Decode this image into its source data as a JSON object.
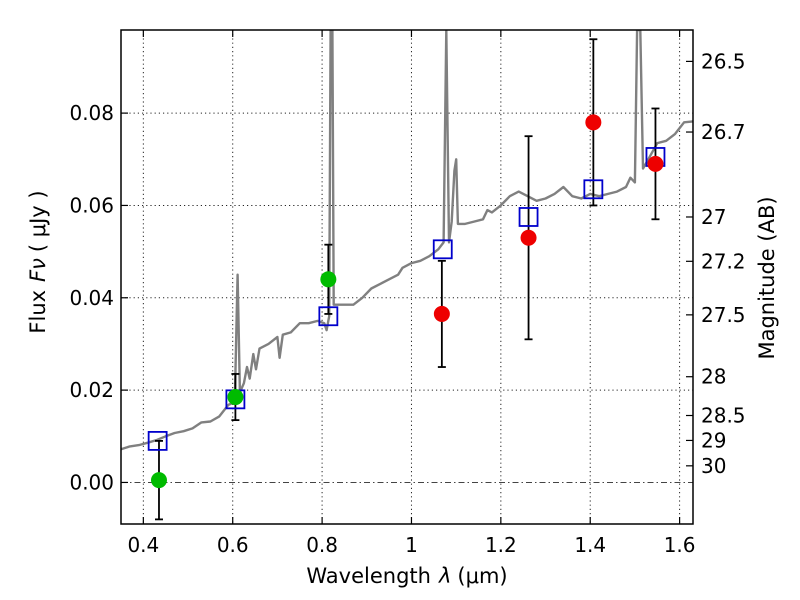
{
  "chart_data": {
    "type": "scatter",
    "xlabel_text": "Wavelength",
    "xlabel_symbol": "λ",
    "xlabel_unit": "(μm)",
    "ylabel_text": "Flux",
    "ylabel_symbol": "Fν",
    "ylabel_unit": "( μJy )",
    "ylabel_right": "Magnitude (AB)",
    "xlim": [
      0.35,
      1.63
    ],
    "ylim": [
      -0.009,
      0.098
    ],
    "xticks": [
      0.4,
      0.6,
      0.8,
      1.0,
      1.2,
      1.4,
      1.6
    ],
    "xtick_labels": [
      "0.4",
      "0.6",
      "0.8",
      "1",
      "1.2",
      "1.4",
      "1.6"
    ],
    "yticks": [
      0.0,
      0.02,
      0.04,
      0.06,
      0.08
    ],
    "ytick_labels": [
      "0.00",
      "0.02",
      "0.04",
      "0.06",
      "0.08"
    ],
    "right_ticks": [
      {
        "label": "26.5",
        "flux": 0.0912
      },
      {
        "label": "26.7",
        "flux": 0.0759
      },
      {
        "label": "27",
        "flux": 0.0575
      },
      {
        "label": "27.2",
        "flux": 0.0479
      },
      {
        "label": "27.5",
        "flux": 0.0363
      },
      {
        "label": "28",
        "flux": 0.0229
      },
      {
        "label": "28.5",
        "flux": 0.0145
      },
      {
        "label": "29",
        "flux": 0.0091
      },
      {
        "label": "30",
        "flux": 0.0036
      }
    ],
    "grid": true,
    "photometry": [
      {
        "x": 0.435,
        "y": 0.0005,
        "err": 0.0085,
        "color": "#00bb00"
      },
      {
        "x": 0.606,
        "y": 0.0185,
        "err": 0.005,
        "color": "#00bb00"
      },
      {
        "x": 0.814,
        "y": 0.044,
        "err": 0.0075,
        "color": "#00bb00"
      },
      {
        "x": 1.068,
        "y": 0.0365,
        "err": 0.0115,
        "color": "#ee0000"
      },
      {
        "x": 1.262,
        "y": 0.053,
        "err": 0.022,
        "color": "#ee0000"
      },
      {
        "x": 1.407,
        "y": 0.078,
        "err": 0.018,
        "color": "#ee0000"
      },
      {
        "x": 1.546,
        "y": 0.069,
        "err": 0.012,
        "color": "#ee0000"
      }
    ],
    "model_fluxes": [
      {
        "x": 0.432,
        "y": 0.009
      },
      {
        "x": 0.606,
        "y": 0.018
      },
      {
        "x": 0.814,
        "y": 0.036
      },
      {
        "x": 1.07,
        "y": 0.0505
      },
      {
        "x": 1.262,
        "y": 0.0575
      },
      {
        "x": 1.407,
        "y": 0.0635
      },
      {
        "x": 1.546,
        "y": 0.0705
      }
    ],
    "spectrum": {
      "color": "#808080",
      "points": [
        [
          0.35,
          0.0072
        ],
        [
          0.37,
          0.0078
        ],
        [
          0.39,
          0.0081
        ],
        [
          0.41,
          0.0086
        ],
        [
          0.43,
          0.0092
        ],
        [
          0.45,
          0.01
        ],
        [
          0.47,
          0.0107
        ],
        [
          0.49,
          0.0111
        ],
        [
          0.51,
          0.0117
        ],
        [
          0.53,
          0.013
        ],
        [
          0.55,
          0.0132
        ],
        [
          0.57,
          0.0143
        ],
        [
          0.59,
          0.0168
        ],
        [
          0.6,
          0.0172
        ],
        [
          0.605,
          0.0195
        ],
        [
          0.611,
          0.045
        ],
        [
          0.616,
          0.0195
        ],
        [
          0.625,
          0.0215
        ],
        [
          0.632,
          0.025
        ],
        [
          0.638,
          0.0225
        ],
        [
          0.646,
          0.0278
        ],
        [
          0.652,
          0.0245
        ],
        [
          0.66,
          0.029
        ],
        [
          0.68,
          0.03
        ],
        [
          0.7,
          0.0315
        ],
        [
          0.705,
          0.027
        ],
        [
          0.712,
          0.032
        ],
        [
          0.73,
          0.0325
        ],
        [
          0.75,
          0.0345
        ],
        [
          0.77,
          0.0345
        ],
        [
          0.79,
          0.035
        ],
        [
          0.805,
          0.0345
        ],
        [
          0.81,
          0.033
        ],
        [
          0.816,
          0.036
        ],
        [
          0.819,
          0.098
        ],
        [
          0.823,
          0.098
        ],
        [
          0.826,
          0.0385
        ],
        [
          0.85,
          0.0385
        ],
        [
          0.87,
          0.0385
        ],
        [
          0.89,
          0.04
        ],
        [
          0.91,
          0.042
        ],
        [
          0.93,
          0.043
        ],
        [
          0.95,
          0.044
        ],
        [
          0.97,
          0.045
        ],
        [
          0.98,
          0.0465
        ],
        [
          1.0,
          0.0475
        ],
        [
          1.02,
          0.048
        ],
        [
          1.04,
          0.049
        ],
        [
          1.06,
          0.0505
        ],
        [
          1.072,
          0.052
        ],
        [
          1.078,
          0.098
        ],
        [
          1.084,
          0.052
        ],
        [
          1.09,
          0.0565
        ],
        [
          1.096,
          0.0675
        ],
        [
          1.1,
          0.07
        ],
        [
          1.104,
          0.056
        ],
        [
          1.12,
          0.056
        ],
        [
          1.14,
          0.0565
        ],
        [
          1.16,
          0.057
        ],
        [
          1.17,
          0.059
        ],
        [
          1.18,
          0.0585
        ],
        [
          1.2,
          0.06
        ],
        [
          1.22,
          0.062
        ],
        [
          1.24,
          0.063
        ],
        [
          1.26,
          0.062
        ],
        [
          1.28,
          0.061
        ],
        [
          1.3,
          0.0615
        ],
        [
          1.32,
          0.0625
        ],
        [
          1.34,
          0.064
        ],
        [
          1.36,
          0.062
        ],
        [
          1.38,
          0.0615
        ],
        [
          1.4,
          0.0625
        ],
        [
          1.42,
          0.062
        ],
        [
          1.44,
          0.0625
        ],
        [
          1.46,
          0.063
        ],
        [
          1.48,
          0.064
        ],
        [
          1.49,
          0.066
        ],
        [
          1.5,
          0.065
        ],
        [
          1.505,
          0.098
        ],
        [
          1.512,
          0.098
        ],
        [
          1.518,
          0.068
        ],
        [
          1.53,
          0.07
        ],
        [
          1.55,
          0.0735
        ],
        [
          1.57,
          0.074
        ],
        [
          1.59,
          0.0755
        ],
        [
          1.61,
          0.078
        ],
        [
          1.63,
          0.0782
        ]
      ]
    }
  }
}
